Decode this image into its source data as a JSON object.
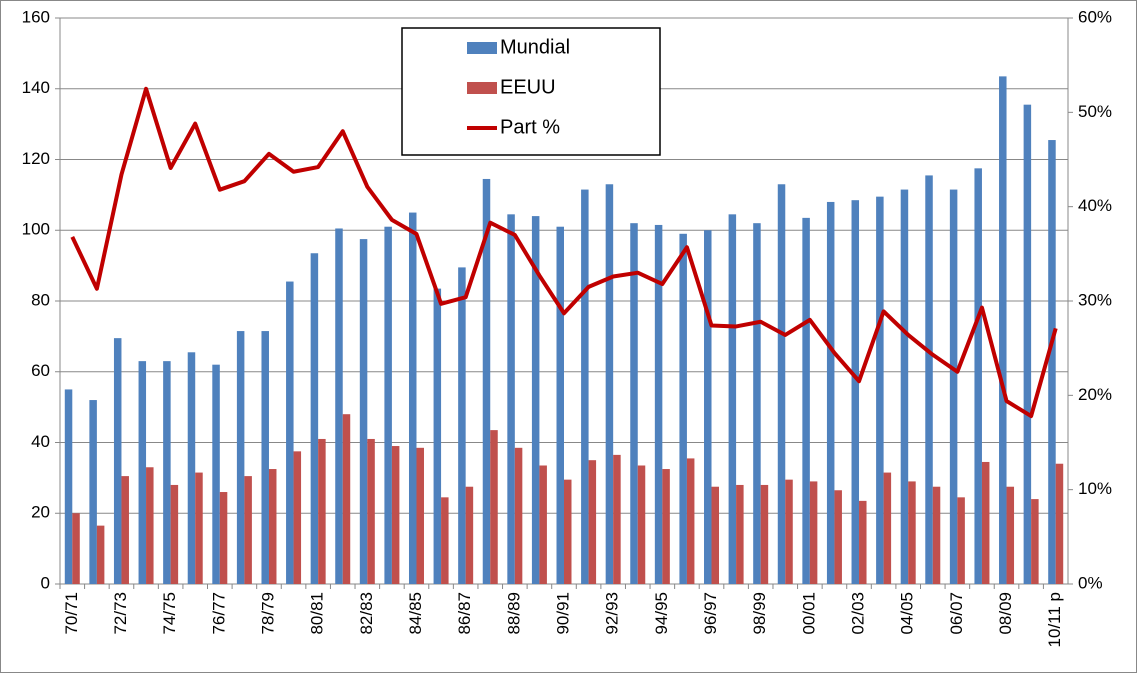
{
  "chart_data": {
    "type": "bar",
    "categories": [
      "70/71",
      null,
      "72/73",
      null,
      "74/75",
      null,
      "76/77",
      null,
      "78/79",
      null,
      "80/81",
      null,
      "82/83",
      null,
      "84/85",
      null,
      "86/87",
      null,
      "88/89",
      null,
      "90/91",
      null,
      "92/93",
      null,
      "94/95",
      null,
      "96/97",
      null,
      "98/99",
      null,
      "00/01",
      null,
      "02/03",
      null,
      "04/05",
      null,
      "06/07",
      null,
      "08/09",
      null,
      "10/11 p"
    ],
    "series": [
      {
        "name": "Mundial",
        "type": "bar",
        "color": "#4f81bd",
        "values": [
          55,
          52,
          69.5,
          63,
          63,
          65.5,
          62,
          71.5,
          71.5,
          85.5,
          93.5,
          100.5,
          97.5,
          101,
          105,
          83.5,
          89.5,
          114.5,
          104.5,
          104,
          101,
          111.5,
          113,
          102,
          101.5,
          99,
          100,
          104.5,
          102,
          113,
          103.5,
          108,
          108.5,
          109.5,
          111.5,
          115.5,
          111.5,
          117.5,
          143.5,
          135.5,
          125.5
        ]
      },
      {
        "name": "EEUU",
        "type": "bar",
        "color": "#c0504d",
        "values": [
          20,
          16.5,
          30.5,
          33,
          28,
          31.5,
          26,
          30.5,
          32.5,
          37.5,
          41,
          48,
          41,
          39,
          38.5,
          24.5,
          27.5,
          43.5,
          38.5,
          33.5,
          29.5,
          35,
          36.5,
          33.5,
          32.5,
          35.5,
          27.5,
          28,
          28,
          29.5,
          29,
          26.5,
          23.5,
          31.5,
          29,
          27.5,
          24.5,
          34.5,
          27.5,
          24,
          34
        ]
      },
      {
        "name": "Part %",
        "type": "line",
        "axis": "y2",
        "color": "#c00000",
        "values": [
          36.8,
          31.3,
          43.4,
          52.5,
          44.1,
          48.8,
          41.8,
          42.7,
          45.6,
          43.7,
          44.2,
          48,
          42.1,
          38.6,
          37.1,
          29.7,
          30.4,
          38.3,
          37,
          32.7,
          28.7,
          31.5,
          32.6,
          33,
          31.8,
          35.7,
          27.4,
          27.3,
          27.8,
          26.4,
          28,
          24.5,
          21.5,
          28.9,
          26.4,
          24.3,
          22.5,
          29.3,
          19.4,
          17.8,
          27.1
        ]
      }
    ],
    "ylim": [
      0,
      160
    ],
    "yticks": [
      0,
      20,
      40,
      60,
      80,
      100,
      120,
      140,
      160
    ],
    "y2lim": [
      0,
      60
    ],
    "y2ticks": [
      {
        "value": 0,
        "label": "0%"
      },
      {
        "value": 10,
        "label": "10%"
      },
      {
        "value": 20,
        "label": "20%"
      },
      {
        "value": 30,
        "label": "30%"
      },
      {
        "value": 40,
        "label": "40%"
      },
      {
        "value": 50,
        "label": "50%"
      },
      {
        "value": 60,
        "label": "60%"
      }
    ],
    "grid": true,
    "legend": "top"
  }
}
